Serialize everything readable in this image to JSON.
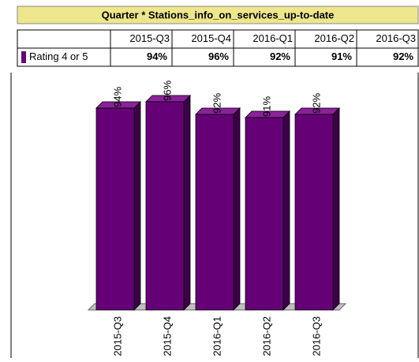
{
  "chart_data": {
    "type": "bar3d",
    "title": "Quarter * Stations_info_on_services_up-to-date",
    "categories": [
      "2015-Q3",
      "2015-Q4",
      "2016-Q1",
      "2016-Q2",
      "2016-Q3"
    ],
    "series": [
      {
        "name": "Rating 4 or 5",
        "color": "#660077",
        "values": [
          94,
          96,
          92,
          91,
          92
        ],
        "value_labels": [
          "94%",
          "96%",
          "92%",
          "91%",
          "92%"
        ]
      }
    ],
    "ylim": [
      30,
      100
    ]
  }
}
